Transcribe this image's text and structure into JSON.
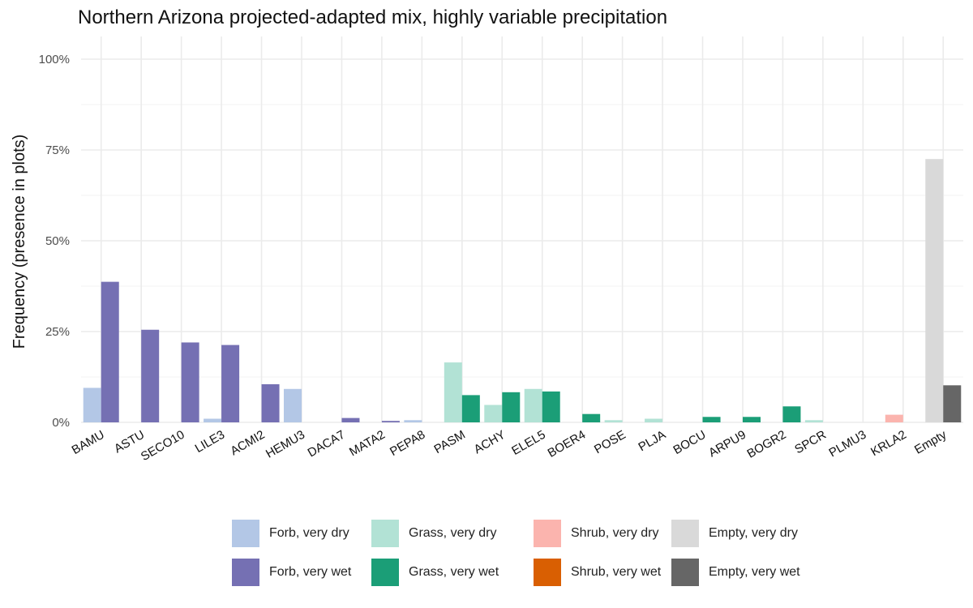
{
  "chart_data": {
    "type": "bar",
    "title": "Northern Arizona projected-adapted mix, highly variable precipitation",
    "xlabel": "",
    "ylabel": "Frequency (presence in plots)",
    "ylim": [
      0,
      1
    ],
    "yticks": [
      0,
      0.25,
      0.5,
      0.75,
      1.0
    ],
    "ytick_labels": [
      "0%",
      "25%",
      "50%",
      "75%",
      "100%"
    ],
    "grid": true,
    "legend_position": "bottom",
    "categories": [
      "BAMU",
      "ASTU",
      "SECO10",
      "LILE3",
      "ACMI2",
      "HEMU3",
      "DACA7",
      "MATA2",
      "PEPA8",
      "PASM",
      "ACHY",
      "ELEL5",
      "BOER4",
      "POSE",
      "PLJA",
      "BOCU",
      "ARPU9",
      "BOGR2",
      "SPCR",
      "PLMU3",
      "KRLA2",
      "Empty"
    ],
    "series": [
      {
        "name": "very dry",
        "values": [
          0.095,
          0,
          0,
          0.01,
          0,
          0.092,
          0,
          0,
          0.006,
          0.165,
          0.048,
          0.092,
          0,
          0.006,
          0.01,
          0,
          0,
          0,
          0.006,
          0,
          0.021,
          0.725
        ]
      },
      {
        "name": "very wet",
        "values": [
          0.387,
          0.255,
          0.22,
          0.213,
          0.105,
          0,
          0.012,
          0.004,
          0,
          0.075,
          0.083,
          0.085,
          0.023,
          0,
          0,
          0.015,
          0.015,
          0.044,
          0,
          0,
          0,
          0.102
        ]
      }
    ],
    "category_group": [
      "Forb",
      "Forb",
      "Forb",
      "Forb",
      "Forb",
      "Forb",
      "Forb",
      "Forb",
      "Forb",
      "Grass",
      "Grass",
      "Grass",
      "Grass",
      "Grass",
      "Grass",
      "Grass",
      "Grass",
      "Grass",
      "Grass",
      "Shrub",
      "Shrub",
      "Empty"
    ],
    "colors": {
      "Forb": {
        "very dry": "#b3c7e6",
        "very wet": "#7570b3"
      },
      "Grass": {
        "very dry": "#b2e2d5",
        "very wet": "#1b9e77"
      },
      "Shrub": {
        "very dry": "#fbb4ae",
        "very wet": "#d95f02"
      },
      "Empty": {
        "very dry": "#d9d9d9",
        "very wet": "#666666"
      }
    },
    "legend": [
      {
        "label": "Forb, very dry",
        "color": "#b3c7e6"
      },
      {
        "label": "Forb, very wet",
        "color": "#7570b3"
      },
      {
        "label": "Grass, very dry",
        "color": "#b2e2d5"
      },
      {
        "label": "Grass, very wet",
        "color": "#1b9e77"
      },
      {
        "label": "Shrub, very dry",
        "color": "#fbb4ae"
      },
      {
        "label": "Shrub, very wet",
        "color": "#d95f02"
      },
      {
        "label": "Empty, very dry",
        "color": "#d9d9d9"
      },
      {
        "label": "Empty, very wet",
        "color": "#666666"
      }
    ]
  }
}
